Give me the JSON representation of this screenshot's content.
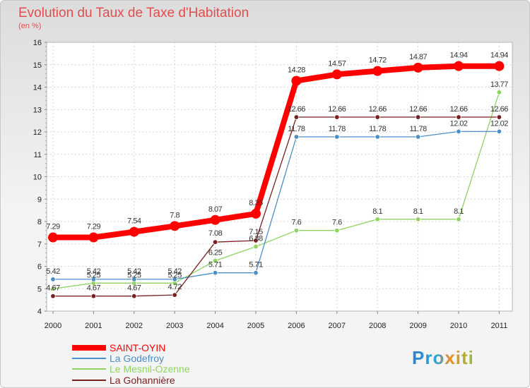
{
  "title": "Evolution du Taux de Taxe d'Habitation",
  "unit": "(en %)",
  "logo": "Proxiti",
  "chart_data": {
    "type": "line",
    "title": "Evolution du Taux de Taxe d'Habitation",
    "ylabel": "(en %)",
    "xlabel": "",
    "categories": [
      "2000",
      "2001",
      "2002",
      "2003",
      "2004",
      "2005",
      "2006",
      "2007",
      "2008",
      "2009",
      "2010",
      "2011"
    ],
    "ylim": [
      4,
      16
    ],
    "yticks": [
      4,
      5,
      6,
      7,
      8,
      9,
      10,
      11,
      12,
      13,
      14,
      15,
      16
    ],
    "grid": true,
    "legend": "bottom-left",
    "series": [
      {
        "name": "SAINT-OYIN",
        "color": "#ff0000",
        "values": [
          7.29,
          7.29,
          7.54,
          7.8,
          8.07,
          8.35,
          14.28,
          14.57,
          14.72,
          14.87,
          14.94,
          14.94
        ],
        "labels": [
          "7.29",
          "7.29",
          "7.54",
          "7.8",
          "8.07",
          "8.35",
          "14.28",
          "14.57",
          "14.72",
          "14.87",
          "14.94",
          "14.94"
        ]
      },
      {
        "name": "La Godefroy",
        "color": "#4a8fc7",
        "values": [
          5.42,
          5.42,
          5.42,
          5.42,
          5.71,
          5.71,
          11.78,
          11.78,
          11.78,
          11.78,
          12.02,
          12.02
        ],
        "labels": [
          "5.42",
          "5.42",
          "5.42",
          "5.42",
          "5.71",
          "5.71",
          "11.78",
          "11.78",
          "11.78",
          "11.78",
          "12.02",
          "12.02"
        ]
      },
      {
        "name": "Le Mesnil-Ozenne",
        "color": "#8fd460",
        "values": [
          5.0,
          5.25,
          5.25,
          5.25,
          6.25,
          6.88,
          7.6,
          7.6,
          8.1,
          8.1,
          8.1,
          13.77
        ],
        "labels": [
          "",
          "5.25",
          "5.25",
          "5.25",
          "6.25",
          "6.88",
          "7.6",
          "7.6",
          "8.1",
          "8.1",
          "8.1",
          "13.77"
        ]
      },
      {
        "name": "La Gohannière",
        "color": "#7a1f1f",
        "values": [
          4.67,
          4.67,
          4.67,
          4.72,
          7.08,
          7.15,
          12.66,
          12.66,
          12.66,
          12.66,
          12.66,
          12.66
        ],
        "labels": [
          "4.67",
          "4.67",
          "4.67",
          "4.72",
          "7.08",
          "7.15",
          "12.66",
          "12.66",
          "12.66",
          "12.66",
          "12.66",
          "12.66"
        ]
      }
    ]
  }
}
